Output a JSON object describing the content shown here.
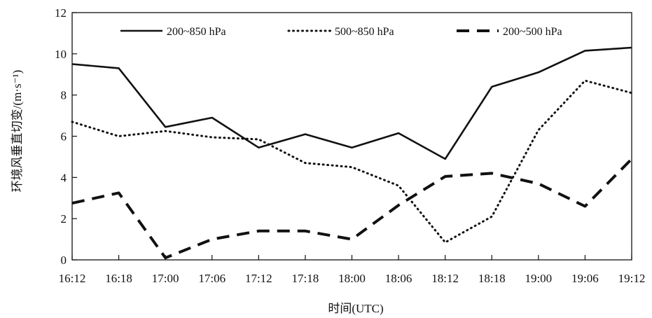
{
  "chart_data": {
    "type": "line",
    "title": "",
    "xlabel": "时间(UTC)",
    "ylabel": "环境风垂直切变/(m·s⁻¹)",
    "categories": [
      "16:12",
      "16:18",
      "17:00",
      "17:06",
      "17:12",
      "17:18",
      "18:00",
      "18:06",
      "18:12",
      "18:18",
      "19:00",
      "19:06",
      "19:12"
    ],
    "yticks": [
      "0",
      "2",
      "4",
      "6",
      "8",
      "10",
      "12"
    ],
    "ylim": [
      0,
      12
    ],
    "grid": false,
    "legend_position": "top",
    "series": [
      {
        "name": "200~850 hPa",
        "style": "solid",
        "values": [
          9.5,
          9.3,
          6.45,
          6.9,
          5.45,
          6.1,
          5.45,
          6.15,
          4.9,
          8.4,
          9.1,
          10.15,
          10.3
        ]
      },
      {
        "name": "500~850 hPa",
        "style": "dotted",
        "values": [
          6.7,
          6.0,
          6.25,
          5.95,
          5.85,
          4.7,
          4.5,
          3.6,
          0.85,
          2.1,
          6.3,
          8.7,
          8.1
        ]
      },
      {
        "name": "200~500 hPa",
        "style": "dashed",
        "values": [
          2.75,
          3.25,
          0.1,
          1.0,
          1.4,
          1.4,
          1.0,
          2.65,
          4.05,
          4.2,
          3.7,
          2.6,
          4.9
        ]
      }
    ]
  }
}
